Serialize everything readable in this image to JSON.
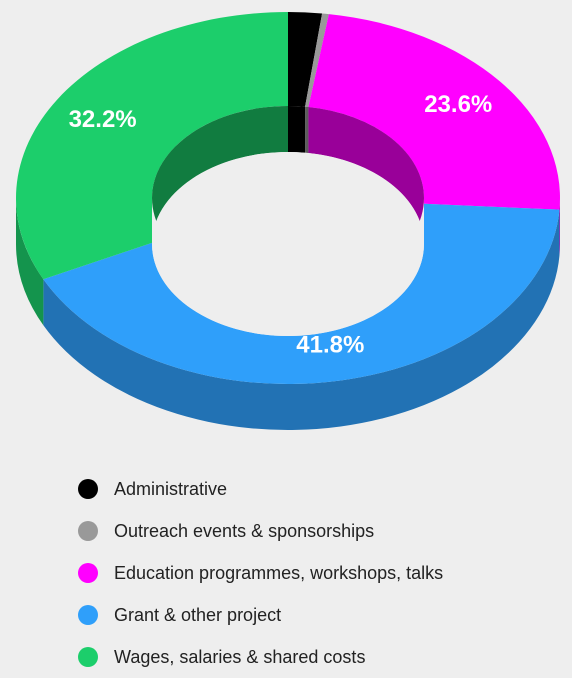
{
  "chart_data": {
    "type": "pie",
    "style": "3d-donut",
    "slices": [
      {
        "label": "Administrative",
        "value": 2.0,
        "color": "#000000"
      },
      {
        "label": "Outreach events & sponsorships",
        "value": 0.4,
        "color": "#999999"
      },
      {
        "label": "Education programmes, workshops, talks",
        "value": 23.6,
        "color": "#ff00ff"
      },
      {
        "label": "Grant & other project",
        "value": 41.8,
        "color": "#2f9ffa"
      },
      {
        "label": "Wages, salaries & shared costs",
        "value": 32.2,
        "color": "#1cce6b"
      }
    ],
    "data_labels": [
      "",
      "",
      "23.6%",
      "41.8%",
      "32.2%"
    ],
    "start_angle_deg": 0,
    "direction": "clockwise",
    "legend_position": "bottom"
  }
}
